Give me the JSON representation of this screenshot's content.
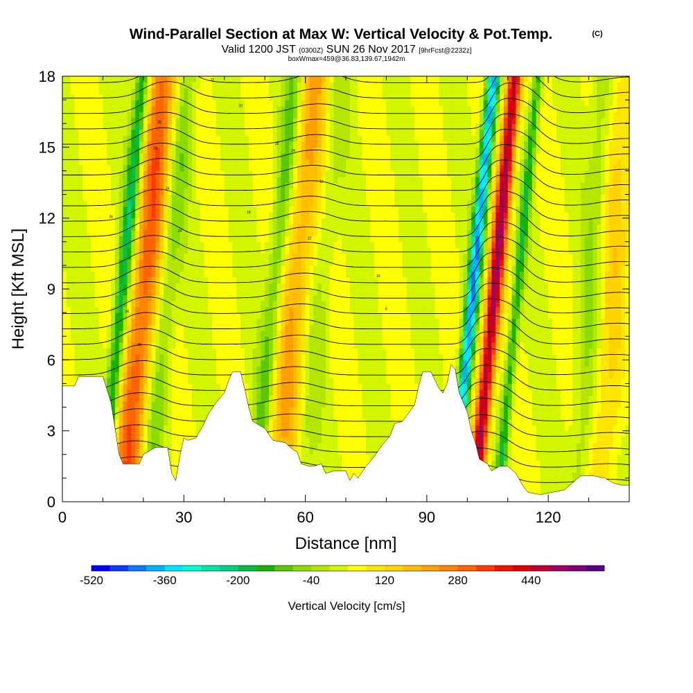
{
  "chart_data": {
    "type": "heatmap",
    "title": "Wind-Parallel Section at Max W: Vertical Velocity & Pot.Temp.",
    "title_mark": "(C)",
    "subtitle": {
      "part1": "Valid 1200 JST",
      "part2": "(0300Z)",
      "part3": "SUN 26 Nov 2017",
      "part4": "[9hrFcst@2232z]"
    },
    "subtitle2": "boxWmax=459@36.83,139.67,1942m",
    "xlabel": "Distance [nm]",
    "ylabel": "Height [Kft MSL]",
    "xlim": [
      0,
      140
    ],
    "ylim": [
      0,
      18
    ],
    "x_ticks": [
      "0",
      "30",
      "60",
      "90",
      "120"
    ],
    "y_ticks": [
      "0",
      "3",
      "6",
      "9",
      "12",
      "15",
      "18"
    ],
    "colorbar": {
      "title": "Vertical Velocity [cm/s]",
      "min": -520,
      "step": 40,
      "labels": [
        "-520",
        "-360",
        "-200",
        "-40",
        "120",
        "280",
        "440"
      ],
      "colors": [
        "#0000ff",
        "#0a3cff",
        "#0a78ff",
        "#00b4ff",
        "#00e6ff",
        "#00ffd2",
        "#00e6aa",
        "#00d282",
        "#00be46",
        "#14b400",
        "#5ac800",
        "#8cdc00",
        "#b4e600",
        "#d2f500",
        "#ffff00",
        "#ffe600",
        "#ffd200",
        "#ffbe00",
        "#ffa000",
        "#ff8200",
        "#ff6400",
        "#ff3c00",
        "#f01400",
        "#dc0000",
        "#be0032",
        "#a00064",
        "#820078",
        "#5a0082"
      ]
    },
    "terrain_kft": [
      [
        0,
        4.9
      ],
      [
        3,
        4.9
      ],
      [
        4,
        5.3
      ],
      [
        10,
        5.3
      ],
      [
        12,
        4.2
      ],
      [
        13,
        3.1
      ],
      [
        14,
        2.0
      ],
      [
        15,
        1.6
      ],
      [
        19,
        1.6
      ],
      [
        20,
        2.0
      ],
      [
        23,
        2.3
      ],
      [
        26,
        2.3
      ],
      [
        27,
        1.2
      ],
      [
        28,
        0.9
      ],
      [
        29,
        1.9
      ],
      [
        30,
        2.7
      ],
      [
        31,
        2.6
      ],
      [
        33,
        2.7
      ],
      [
        35,
        3.3
      ],
      [
        36,
        3.7
      ],
      [
        38,
        4.2
      ],
      [
        40,
        4.6
      ],
      [
        41,
        5.1
      ],
      [
        42,
        5.5
      ],
      [
        44,
        5.5
      ],
      [
        45,
        4.8
      ],
      [
        46,
        4.0
      ],
      [
        47,
        3.4
      ],
      [
        50,
        3.1
      ],
      [
        52,
        2.6
      ],
      [
        55,
        2.5
      ],
      [
        57,
        2.2
      ],
      [
        58,
        2.1
      ],
      [
        59,
        1.6
      ],
      [
        61,
        1.5
      ],
      [
        62,
        1.5
      ],
      [
        64,
        1.6
      ],
      [
        65,
        1.2
      ],
      [
        67,
        1.3
      ],
      [
        70,
        1.3
      ],
      [
        71,
        0.9
      ],
      [
        72,
        1.2
      ],
      [
        73,
        1.0
      ],
      [
        75,
        1.5
      ],
      [
        77,
        1.9
      ],
      [
        79,
        2.4
      ],
      [
        81,
        2.8
      ],
      [
        82,
        3.3
      ],
      [
        84,
        3.4
      ],
      [
        87,
        4.1
      ],
      [
        88,
        4.9
      ],
      [
        89,
        5.5
      ],
      [
        91,
        5.5
      ],
      [
        93,
        4.8
      ],
      [
        94,
        4.6
      ],
      [
        95,
        5.0
      ],
      [
        96,
        5.8
      ],
      [
        97,
        5.6
      ],
      [
        98,
        4.6
      ],
      [
        100,
        3.8
      ],
      [
        101,
        3.0
      ],
      [
        102,
        2.5
      ],
      [
        103,
        1.8
      ],
      [
        105,
        1.6
      ],
      [
        106,
        1.3
      ],
      [
        108,
        1.5
      ],
      [
        110,
        1.5
      ],
      [
        112,
        1.2
      ],
      [
        113,
        0.9
      ],
      [
        114,
        0.6
      ],
      [
        115,
        0.4
      ],
      [
        118,
        0.3
      ],
      [
        121,
        0.4
      ],
      [
        124,
        0.5
      ],
      [
        126,
        0.8
      ],
      [
        128,
        1.1
      ],
      [
        131,
        1.1
      ],
      [
        134,
        1.0
      ],
      [
        136,
        0.8
      ],
      [
        138,
        0.7
      ],
      [
        140,
        0.7
      ]
    ],
    "isentrope_labels": [
      "26",
      "26",
      "28",
      "28",
      "25",
      "24",
      "24",
      "22",
      "20",
      "18",
      "16",
      "14",
      "12",
      "12",
      "10",
      "6"
    ]
  }
}
